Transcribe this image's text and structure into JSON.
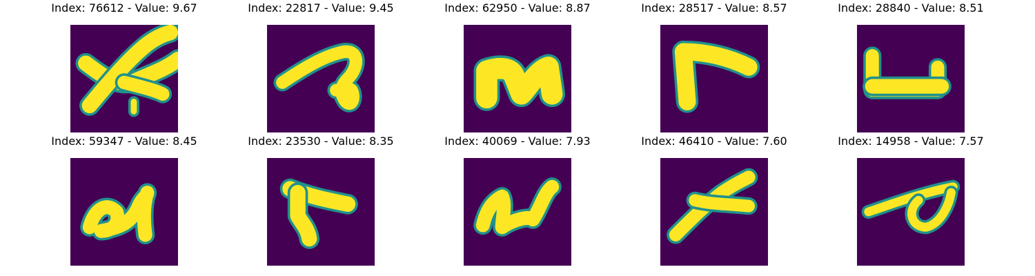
{
  "colors": {
    "background": "#440154",
    "stroke_mid": "#21918c",
    "stroke_core": "#fde725"
  },
  "panels": [
    {
      "title": "Index: 76612 - Value: 9.67",
      "index": 76612,
      "value": 9.67,
      "glyph": "x-cross"
    },
    {
      "title": "Index: 22817 - Value: 9.45",
      "index": 22817,
      "value": 9.45,
      "glyph": "hook-loop"
    },
    {
      "title": "Index: 62950 - Value: 8.87",
      "index": 62950,
      "value": 8.87,
      "glyph": "n-blob"
    },
    {
      "title": "Index: 28517 - Value: 8.57",
      "index": 28517,
      "value": 8.57,
      "glyph": "bent-seven"
    },
    {
      "title": "Index: 28840 - Value: 8.51",
      "index": 28840,
      "value": 8.51,
      "glyph": "flat-bracket"
    },
    {
      "title": "Index: 59347 - Value: 8.45",
      "index": 59347,
      "value": 8.45,
      "glyph": "u-stroke"
    },
    {
      "title": "Index: 23530 - Value: 8.35",
      "index": 23530,
      "value": 8.35,
      "glyph": "bent-seven-2"
    },
    {
      "title": "Index: 40069 - Value: 7.93",
      "index": 40069,
      "value": 7.93,
      "glyph": "u-stroke-2"
    },
    {
      "title": "Index: 46410 - Value: 7.60",
      "index": 46410,
      "value": 7.6,
      "glyph": "x-slant"
    },
    {
      "title": "Index: 14958 - Value: 7.57",
      "index": 14958,
      "value": 7.57,
      "glyph": "loop-line"
    }
  ]
}
